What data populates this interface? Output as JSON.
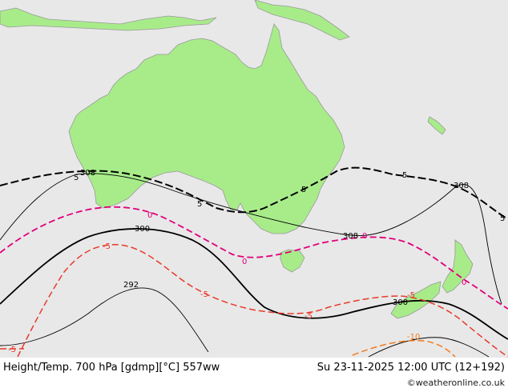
{
  "footer": {
    "title": "Height/Temp. 700 hPa [gdmp][°C] 557ww",
    "valid_time": "Su 23-11-2025 12:00 UTC (12+192)",
    "credit_symbol": "©",
    "credit": "weatheronline.co.uk"
  },
  "contour_labels": {
    "height_308_a": "308",
    "height_308_b": "308",
    "height_308_c": "308",
    "height_300_a": "300",
    "height_300_b": "300",
    "height_292": "292",
    "temp_5_a": "5",
    "temp_5_b": "5",
    "temp_5_c": "5",
    "temp_5_d": "5",
    "temp_5_e": "5",
    "temp_0_a": "0",
    "temp_0_b": "0",
    "temp_0_c": "0",
    "temp_0_d": "0",
    "temp_m5_a": "-5",
    "temp_m5_b": "-5",
    "temp_m5_c": "-5",
    "temp_m5_d": "-5",
    "temp_m5_e": "-5",
    "temp_m10": "-10"
  },
  "colors": {
    "ocean": "#e8e8e8",
    "land": "#a8ec8a",
    "coast": "#999999",
    "height_contour": "#000000",
    "temp_5": "#000000",
    "temp_0": "#e0007a",
    "temp_m5": "#e83a2a",
    "temp_m10": "#f07a20",
    "credit_link": "#1a1a1a"
  }
}
